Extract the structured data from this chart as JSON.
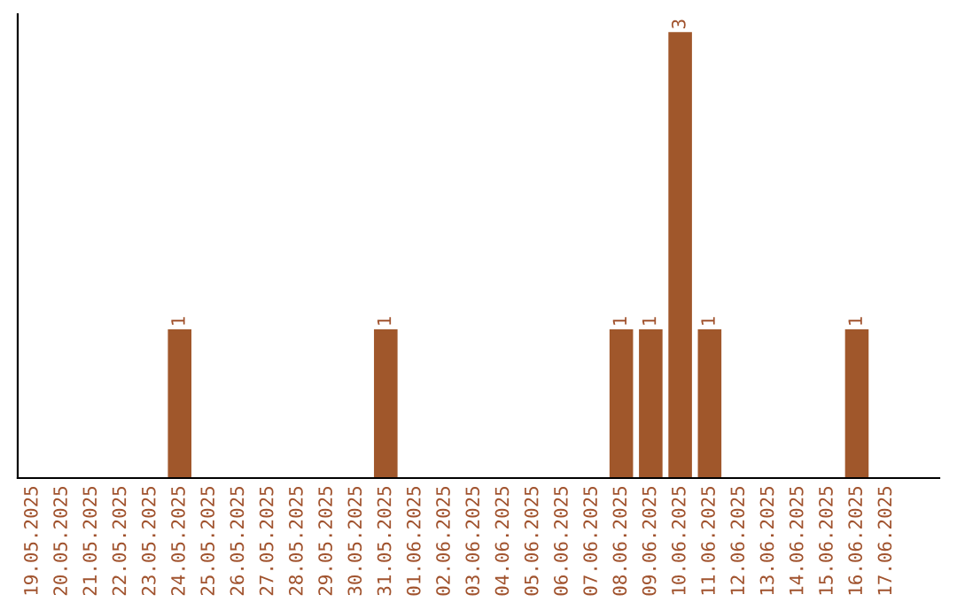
{
  "chart_data": {
    "type": "bar",
    "categories": [
      "19.05.2025",
      "20.05.2025",
      "21.05.2025",
      "22.05.2025",
      "23.05.2025",
      "24.05.2025",
      "25.05.2025",
      "26.05.2025",
      "27.05.2025",
      "28.05.2025",
      "29.05.2025",
      "30.05.2025",
      "31.05.2025",
      "01.06.2025",
      "02.06.2025",
      "03.06.2025",
      "04.06.2025",
      "05.06.2025",
      "06.06.2025",
      "07.06.2025",
      "08.06.2025",
      "09.06.2025",
      "10.06.2025",
      "11.06.2025",
      "12.06.2025",
      "13.06.2025",
      "14.06.2025",
      "15.06.2025",
      "16.06.2025",
      "17.06.2025"
    ],
    "values": [
      0,
      0,
      0,
      0,
      0,
      1,
      0,
      0,
      0,
      0,
      0,
      0,
      1,
      0,
      0,
      0,
      0,
      0,
      0,
      0,
      1,
      1,
      3,
      1,
      0,
      0,
      0,
      0,
      1,
      0
    ],
    "value_labels": [
      null,
      null,
      null,
      null,
      null,
      "1",
      null,
      null,
      null,
      null,
      null,
      null,
      "1",
      null,
      null,
      null,
      null,
      null,
      null,
      null,
      "1",
      "1",
      "3",
      "1",
      null,
      null,
      null,
      null,
      "1",
      null
    ],
    "color": "#a0572b",
    "tick_labels": "x",
    "grid": false,
    "legend": false
  }
}
